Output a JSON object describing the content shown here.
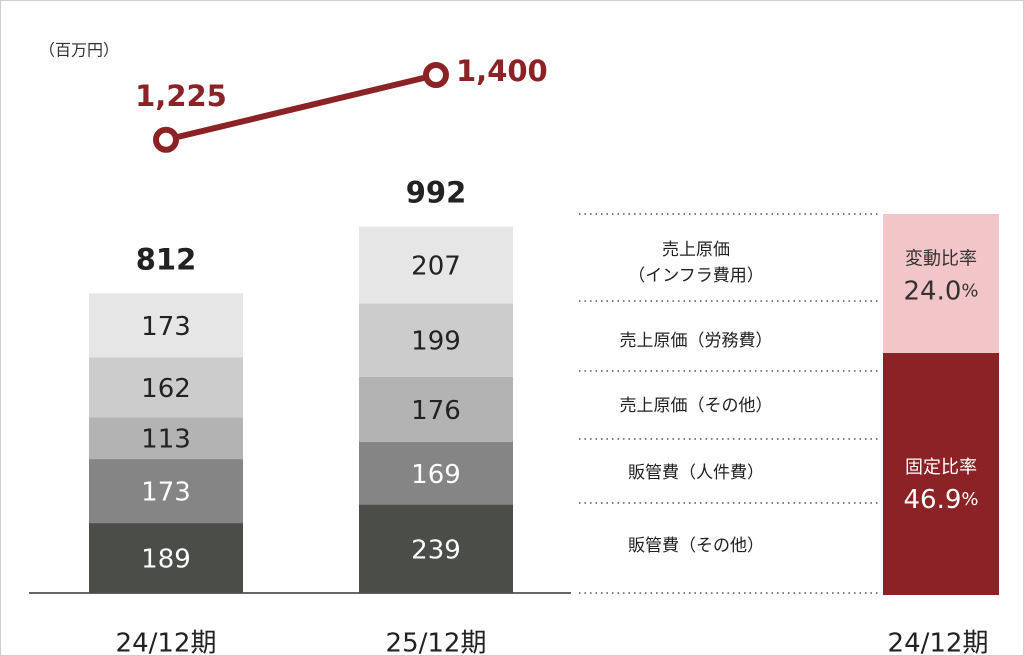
{
  "chart_data": {
    "type": "bar",
    "stacked": true,
    "unit_label": "（百万円）",
    "categories": [
      "24/12期",
      "25/12期"
    ],
    "ylim": [
      0,
      1600
    ],
    "series": [
      {
        "name": "販管費（その他）",
        "color": "#4a4d48",
        "values": [
          189,
          239
        ]
      },
      {
        "name": "販管費（人件費）",
        "color": "#858585",
        "values": [
          173,
          169
        ]
      },
      {
        "name": "売上原価（その他）",
        "color": "#b3b3b3",
        "values": [
          113,
          176
        ]
      },
      {
        "name": "売上原価（労務費）",
        "color": "#cccccc",
        "values": [
          162,
          199
        ]
      },
      {
        "name": "売上原価\n（インフラ費用）",
        "color": "#e6e6e6",
        "values": [
          173,
          207
        ]
      }
    ],
    "totals": [
      812,
      992
    ],
    "line": {
      "color": "#8b2326",
      "values": [
        1225,
        1400
      ],
      "value_labels": [
        "1,225",
        "1,400"
      ]
    },
    "ratio_panel": {
      "category": "24/12期",
      "groups": [
        {
          "label": "変動比率",
          "value": 24.0,
          "value_label": "24.0",
          "unit": "%",
          "color": "#f2c6c8",
          "text_color": "#333333"
        },
        {
          "label": "固定比率",
          "value": 46.9,
          "value_label": "46.9",
          "unit": "%",
          "color": "#8b2326",
          "text_color": "#ffffff"
        }
      ]
    }
  }
}
